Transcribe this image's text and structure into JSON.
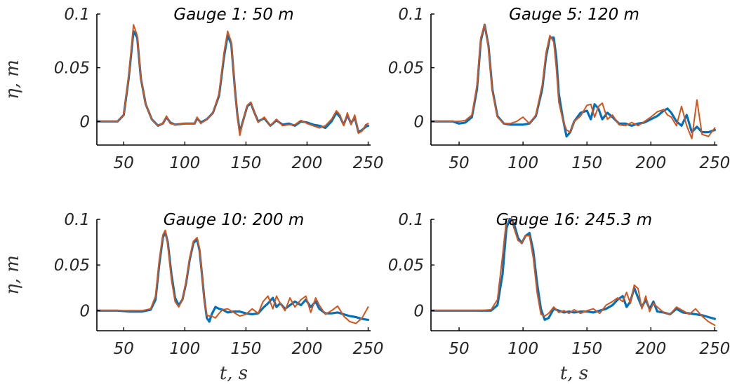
{
  "chart_data": [
    {
      "type": "line",
      "title": "Gauge 1: 50 m",
      "ylabel": "η, m",
      "xlabel": "",
      "xlim": [
        28,
        252
      ],
      "ylim": [
        -0.022,
        0.1
      ],
      "xticks": [
        50,
        100,
        150,
        200,
        250
      ],
      "yticks": [
        0,
        0.05,
        0.1
      ],
      "series": [
        {
          "color": "#0072BD",
          "width": 3.2,
          "x": [
            28,
            45,
            50,
            54,
            58,
            61,
            64,
            68,
            73,
            78,
            82,
            85,
            88,
            92,
            100,
            108,
            110,
            113,
            118,
            123,
            128,
            132,
            135,
            138,
            141,
            143,
            145,
            148,
            151,
            154,
            157,
            160,
            165,
            170,
            175,
            180,
            185,
            190,
            195,
            200,
            205,
            210,
            215,
            220,
            224,
            227,
            230,
            233,
            236,
            239,
            242,
            245,
            248,
            250
          ],
          "y": [
            0,
            0,
            0.006,
            0.04,
            0.084,
            0.078,
            0.04,
            0.016,
            0.002,
            -0.004,
            -0.002,
            0.004,
            -0.001,
            -0.003,
            -0.002,
            -0.002,
            0.003,
            -0.001,
            0.002,
            0.008,
            0.024,
            0.06,
            0.08,
            0.072,
            0.03,
            0.006,
            -0.01,
            0.002,
            0.014,
            0.017,
            0.008,
            0,
            0.003,
            -0.004,
            0.001,
            -0.003,
            -0.002,
            -0.004,
            0,
            -0.001,
            -0.003,
            -0.004,
            -0.006,
            0,
            0.008,
            0.004,
            -0.003,
            0.006,
            -0.002,
            0.004,
            -0.01,
            -0.008,
            -0.005,
            -0.004
          ]
        },
        {
          "color": "#D95319",
          "width": 2.0,
          "x": [
            28,
            45,
            50,
            54,
            58,
            61,
            64,
            68,
            73,
            78,
            82,
            85,
            88,
            92,
            100,
            108,
            110,
            113,
            118,
            123,
            128,
            132,
            135,
            138,
            141,
            143,
            145,
            148,
            151,
            154,
            157,
            160,
            165,
            170,
            175,
            180,
            185,
            190,
            195,
            200,
            205,
            210,
            215,
            220,
            224,
            227,
            230,
            233,
            236,
            239,
            242,
            245,
            248,
            250
          ],
          "y": [
            0,
            0,
            0.006,
            0.042,
            0.09,
            0.08,
            0.04,
            0.016,
            0.002,
            -0.004,
            -0.002,
            0.005,
            -0.002,
            -0.003,
            -0.002,
            -0.002,
            0.004,
            -0.002,
            0.002,
            0.008,
            0.026,
            0.064,
            0.084,
            0.074,
            0.03,
            0.004,
            -0.013,
            0.002,
            0.015,
            0.018,
            0.008,
            -0.001,
            0.004,
            -0.004,
            0.002,
            -0.004,
            -0.003,
            -0.003,
            0.001,
            -0.002,
            -0.004,
            -0.006,
            -0.004,
            0.002,
            0.01,
            0.006,
            -0.004,
            0.008,
            -0.003,
            0.006,
            -0.011,
            -0.009,
            -0.003,
            -0.002
          ]
        }
      ]
    },
    {
      "type": "line",
      "title": "Gauge 5: 120 m",
      "ylabel": "",
      "xlabel": "",
      "xlim": [
        28,
        252
      ],
      "ylim": [
        -0.022,
        0.1
      ],
      "xticks": [
        50,
        100,
        150,
        200,
        250
      ],
      "yticks": [
        0,
        0.05,
        0.1
      ],
      "series": [
        {
          "color": "#0072BD",
          "width": 3.2,
          "x": [
            28,
            45,
            50,
            55,
            60,
            64,
            67,
            70,
            73,
            76,
            80,
            85,
            90,
            95,
            100,
            105,
            110,
            115,
            118,
            121,
            124,
            126,
            128,
            131,
            134,
            137,
            140,
            145,
            150,
            153,
            156,
            159,
            162,
            166,
            170,
            175,
            180,
            185,
            190,
            195,
            200,
            205,
            210,
            213,
            216,
            220,
            224,
            228,
            232,
            236,
            240,
            245,
            250
          ],
          "y": [
            0,
            0,
            -0.002,
            -0.001,
            0.004,
            0.03,
            0.075,
            0.09,
            0.07,
            0.03,
            0.005,
            -0.002,
            -0.003,
            -0.003,
            -0.003,
            -0.002,
            0.005,
            0.03,
            0.06,
            0.078,
            0.078,
            0.06,
            0.026,
            0.004,
            -0.014,
            -0.01,
            0,
            0.008,
            0.01,
            0.002,
            0.016,
            0.012,
            0.002,
            0.008,
            0.004,
            -0.002,
            -0.002,
            -0.004,
            -0.002,
            -0.001,
            0.002,
            0.005,
            0.01,
            0.012,
            0.008,
            0,
            -0.004,
            0.006,
            -0.01,
            -0.005,
            -0.01,
            -0.01,
            -0.008
          ]
        },
        {
          "color": "#D95319",
          "width": 2.0,
          "x": [
            28,
            45,
            50,
            55,
            60,
            64,
            67,
            70,
            73,
            76,
            80,
            85,
            90,
            95,
            100,
            105,
            110,
            115,
            118,
            121,
            124,
            126,
            128,
            131,
            134,
            137,
            140,
            145,
            150,
            153,
            156,
            159,
            162,
            166,
            170,
            175,
            180,
            185,
            190,
            195,
            200,
            205,
            210,
            213,
            216,
            220,
            224,
            228,
            232,
            236,
            240,
            245,
            250
          ],
          "y": [
            0,
            0,
            0,
            0.001,
            0.006,
            0.034,
            0.078,
            0.09,
            0.068,
            0.028,
            0.004,
            -0.002,
            -0.002,
            0,
            0.004,
            -0.002,
            0.006,
            0.034,
            0.064,
            0.08,
            0.074,
            0.05,
            0.018,
            0.002,
            -0.008,
            -0.01,
            0,
            0.005,
            0.015,
            0.016,
            0.004,
            0.014,
            0.017,
            0.002,
            0.006,
            -0.003,
            -0.004,
            -0.001,
            -0.004,
            0,
            0.004,
            0.009,
            0.011,
            0.006,
            0.004,
            -0.004,
            0.014,
            -0.004,
            -0.016,
            0.02,
            -0.012,
            -0.014,
            -0.006
          ]
        }
      ]
    },
    {
      "type": "line",
      "title": "Gauge 10: 200 m",
      "ylabel": "η, m",
      "xlabel": "t, s",
      "xlim": [
        28,
        252
      ],
      "ylim": [
        -0.022,
        0.1
      ],
      "xticks": [
        50,
        100,
        150,
        200,
        250
      ],
      "yticks": [
        0,
        0.05,
        0.1
      ],
      "series": [
        {
          "color": "#0072BD",
          "width": 3.2,
          "x": [
            28,
            45,
            55,
            65,
            72,
            76,
            79,
            82,
            84,
            86,
            89,
            92,
            95,
            98,
            101,
            104,
            107,
            110,
            112,
            114,
            116,
            118,
            120,
            122,
            125,
            128,
            131,
            135,
            140,
            145,
            150,
            155,
            160,
            164,
            168,
            172,
            175,
            178,
            182,
            186,
            190,
            195,
            199,
            203,
            207,
            210,
            215,
            220,
            225,
            230,
            235,
            240,
            245,
            250
          ],
          "y": [
            0,
            0,
            -0.001,
            -0.001,
            0.001,
            0.012,
            0.05,
            0.08,
            0.086,
            0.075,
            0.04,
            0.014,
            0.006,
            0.012,
            0.03,
            0.056,
            0.074,
            0.078,
            0.066,
            0.04,
            0.012,
            -0.008,
            -0.012,
            -0.004,
            0.004,
            0.002,
            0.001,
            -0.002,
            -0.001,
            -0.001,
            -0.003,
            -0.004,
            -0.003,
            0.003,
            0.008,
            0.014,
            0.004,
            0.008,
            0.002,
            0.006,
            0.01,
            0.006,
            0.012,
            0.004,
            0.01,
            0.002,
            -0.003,
            -0.003,
            -0.002,
            -0.004,
            -0.006,
            -0.007,
            -0.009,
            -0.01
          ]
        },
        {
          "color": "#D95319",
          "width": 2.0,
          "x": [
            28,
            45,
            55,
            65,
            72,
            76,
            79,
            82,
            84,
            86,
            89,
            92,
            95,
            98,
            101,
            104,
            107,
            110,
            112,
            114,
            116,
            118,
            120,
            122,
            125,
            128,
            131,
            135,
            140,
            145,
            150,
            155,
            160,
            164,
            168,
            172,
            175,
            178,
            182,
            186,
            190,
            195,
            199,
            203,
            207,
            210,
            215,
            220,
            225,
            230,
            235,
            240,
            245,
            250
          ],
          "y": [
            0,
            0,
            0,
            0,
            0.002,
            0.016,
            0.055,
            0.083,
            0.088,
            0.072,
            0.034,
            0.01,
            0.004,
            0.012,
            0.032,
            0.058,
            0.076,
            0.08,
            0.068,
            0.04,
            0.01,
            -0.005,
            -0.006,
            -0.006,
            -0.008,
            -0.003,
            0.001,
            0.002,
            -0.002,
            -0.006,
            -0.004,
            0.002,
            -0.003,
            0.01,
            0.016,
            0.002,
            0.016,
            0.008,
            0,
            0.014,
            0.004,
            0.012,
            0.016,
            -0.002,
            0.014,
            0.006,
            -0.004,
            0,
            0.005,
            -0.006,
            -0.012,
            -0.014,
            -0.008,
            0.004
          ]
        }
      ]
    },
    {
      "type": "line",
      "title": "Gauge 16: 245.3 m",
      "ylabel": "",
      "xlabel": "t, s",
      "xlim": [
        28,
        252
      ],
      "ylim": [
        -0.022,
        0.1
      ],
      "xticks": [
        50,
        100,
        150,
        200,
        250
      ],
      "yticks": [
        0,
        0.05,
        0.1
      ],
      "series": [
        {
          "color": "#0072BD",
          "width": 3.2,
          "x": [
            28,
            45,
            55,
            65,
            75,
            80,
            84,
            87,
            90,
            93,
            96,
            99,
            102,
            105,
            108,
            111,
            114,
            117,
            120,
            124,
            128,
            132,
            136,
            140,
            145,
            150,
            155,
            160,
            165,
            170,
            174,
            178,
            181,
            184,
            187,
            190,
            193,
            196,
            199,
            202,
            205,
            210,
            215,
            220,
            225,
            230,
            235,
            240,
            245,
            250
          ],
          "y": [
            0,
            0,
            0,
            0,
            0,
            0.006,
            0.04,
            0.09,
            0.102,
            0.095,
            0.08,
            0.074,
            0.082,
            0.085,
            0.066,
            0.03,
            0.002,
            -0.01,
            -0.008,
            0.002,
            0,
            -0.002,
            -0.001,
            -0.002,
            -0.001,
            -0.001,
            -0.002,
            0,
            0.002,
            0.006,
            0.012,
            0.016,
            0.004,
            0.01,
            0.025,
            0.014,
            0.004,
            0.012,
            0.002,
            0.01,
            -0.001,
            -0.002,
            -0.004,
            0.002,
            -0.002,
            -0.003,
            -0.004,
            -0.005,
            -0.007,
            -0.009
          ]
        },
        {
          "color": "#D95319",
          "width": 2.0,
          "x": [
            28,
            45,
            55,
            65,
            75,
            80,
            84,
            87,
            90,
            93,
            96,
            99,
            102,
            105,
            108,
            111,
            114,
            117,
            120,
            124,
            128,
            132,
            136,
            140,
            145,
            150,
            155,
            160,
            165,
            170,
            174,
            178,
            181,
            184,
            187,
            190,
            193,
            196,
            199,
            202,
            205,
            210,
            215,
            220,
            225,
            230,
            235,
            240,
            245,
            250
          ],
          "y": [
            0,
            0,
            0,
            0,
            0.001,
            0.012,
            0.06,
            0.1,
            0.104,
            0.09,
            0.077,
            0.074,
            0.082,
            0.082,
            0.058,
            0.02,
            -0.004,
            -0.006,
            -0.003,
            0.004,
            -0.002,
            0,
            -0.003,
            0.001,
            -0.003,
            0,
            0.002,
            -0.003,
            0.006,
            0.01,
            0.014,
            0.01,
            0.02,
            0.008,
            0.028,
            0.024,
            0.002,
            0.016,
            -0.001,
            0.008,
            0.004,
            -0.002,
            -0.004,
            0.004,
            0,
            -0.004,
            0.002,
            -0.006,
            -0.012,
            -0.016
          ]
        }
      ]
    }
  ]
}
